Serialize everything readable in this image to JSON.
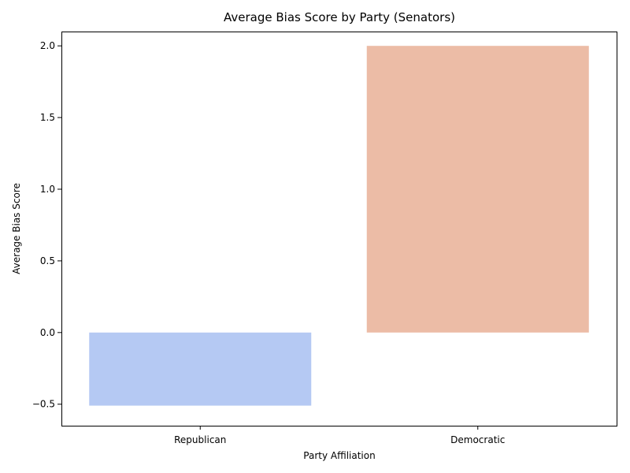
{
  "chart_data": {
    "type": "bar",
    "title": "Average Bias Score by Party (Senators)",
    "xlabel": "Party Affiliation",
    "ylabel": "Average Bias Score",
    "categories": [
      "Republican",
      "Democratic"
    ],
    "values": [
      -0.51,
      2.0
    ],
    "colors": [
      "#b5c9f3",
      "#ecbca6"
    ],
    "ylim": [
      -0.65,
      2.1
    ],
    "yticks": [
      -0.5,
      0.0,
      0.5,
      1.0,
      1.5,
      2.0
    ],
    "ytick_labels": [
      "−0.5",
      "0.0",
      "0.5",
      "1.0",
      "1.5",
      "2.0"
    ],
    "grid": false,
    "legend": "none"
  }
}
